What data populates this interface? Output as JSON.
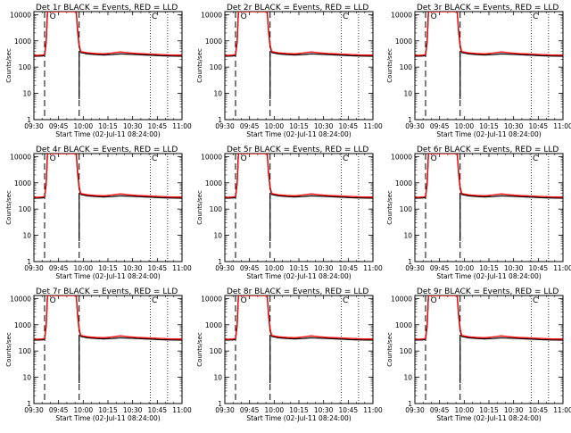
{
  "chart_data": [
    {
      "panel_id": "det1",
      "type": "line",
      "title": "Det 1r BLACK = Events, RED = LLD",
      "xlabel": "Start Time (02-Jul-11 08:24:00)",
      "ylabel": "Counts/sec",
      "markers": [
        "O",
        "C"
      ]
    },
    {
      "panel_id": "det2",
      "type": "line",
      "title": "Det 2r BLACK = Events, RED = LLD",
      "xlabel": "Start Time (02-Jul-11 08:24:00)",
      "ylabel": "Counts/sec",
      "markers": [
        "O",
        "C"
      ]
    },
    {
      "panel_id": "det3",
      "type": "line",
      "title": "Det 3r BLACK = Events, RED = LLD",
      "xlabel": "Start Time (02-Jul-11 08:24:00)",
      "ylabel": "Counts/sec",
      "markers": [
        "O",
        "C"
      ]
    },
    {
      "panel_id": "det4",
      "type": "line",
      "title": "Det 4r BLACK = Events, RED = LLD",
      "xlabel": "Start Time (02-Jul-11 08:24:00)",
      "ylabel": "Counts/sec",
      "markers": [
        "O",
        "C"
      ]
    },
    {
      "panel_id": "det5",
      "type": "line",
      "title": "Det 5r BLACK = Events, RED = LLD",
      "xlabel": "Start Time (02-Jul-11 08:24:00)",
      "ylabel": "Counts/sec",
      "markers": [
        "O",
        "C"
      ]
    },
    {
      "panel_id": "det6",
      "type": "line",
      "title": "Det 6r BLACK = Events, RED = LLD",
      "xlabel": "Start Time (02-Jul-11 08:24:00)",
      "ylabel": "Counts/sec",
      "markers": [
        "O",
        "C"
      ]
    },
    {
      "panel_id": "det7",
      "type": "line",
      "title": "Det 7r BLACK = Events, RED = LLD",
      "xlabel": "Start Time (02-Jul-11 08:24:00)",
      "ylabel": "Counts/sec",
      "markers": [
        "O",
        "C"
      ]
    },
    {
      "panel_id": "det8",
      "type": "line",
      "title": "Det 8r BLACK = Events, RED = LLD",
      "xlabel": "Start Time (02-Jul-11 08:24:00)",
      "ylabel": "Counts/sec",
      "markers": [
        "O",
        "C"
      ]
    },
    {
      "panel_id": "det9",
      "type": "line",
      "title": "Det 9r BLACK = Events, RED = LLD",
      "xlabel": "Start Time (02-Jul-11 08:24:00)",
      "ylabel": "Counts/sec",
      "markers": [
        "O",
        "C"
      ]
    }
  ],
  "axes": {
    "x_domain_minutes": [
      0,
      36
    ],
    "x_ticks": [
      {
        "label": "09:30",
        "minute": 0
      },
      {
        "label": "09:45",
        "minute": 6
      },
      {
        "label": "10:00",
        "minute": 12
      },
      {
        "label": "10:15",
        "minute": 18
      },
      {
        "label": "10:30",
        "minute": 24
      },
      {
        "label": "10:45",
        "minute": 30
      },
      {
        "label": "11:00",
        "minute": 36
      }
    ],
    "y_scale": "log",
    "ylim": [
      1,
      13000
    ],
    "y_ticks": [
      {
        "label": "1",
        "value": 1
      },
      {
        "label": "10",
        "value": 10
      },
      {
        "label": "100",
        "value": 100
      },
      {
        "label": "1000",
        "value": 1000
      },
      {
        "label": "10000",
        "value": 10000
      }
    ]
  },
  "reference_lines": {
    "dashed_minutes": [
      2.6,
      11.0
    ],
    "dotted_minutes": [
      28.3,
      32.5
    ],
    "marker_minutes": {
      "O": 4.6,
      "C": 29.3
    }
  },
  "series": {
    "lld_red": {
      "name": "LLD",
      "color": "#ff0000",
      "points": [
        [
          0,
          280
        ],
        [
          1,
          282
        ],
        [
          2,
          288
        ],
        [
          2.6,
          300
        ],
        [
          3,
          1000
        ],
        [
          3.3,
          13000
        ],
        [
          10.3,
          13000
        ],
        [
          10.6,
          3000
        ],
        [
          11,
          700
        ],
        [
          11.4,
          390
        ],
        [
          13,
          350
        ],
        [
          15,
          330
        ],
        [
          17,
          320
        ],
        [
          19,
          345
        ],
        [
          21,
          380
        ],
        [
          23,
          350
        ],
        [
          25,
          330
        ],
        [
          27,
          320
        ],
        [
          29,
          310
        ],
        [
          31,
          300
        ],
        [
          33,
          290
        ],
        [
          36,
          285
        ]
      ]
    },
    "events_black": {
      "name": "Events",
      "color": "#000000",
      "points": [
        [
          0,
          260
        ],
        [
          1,
          262
        ],
        [
          2,
          265
        ],
        [
          2.6,
          280
        ],
        [
          3,
          900
        ],
        [
          3.3,
          13000
        ],
        [
          10.3,
          13000
        ],
        [
          10.6,
          2500
        ],
        [
          11,
          600
        ],
        [
          11.4,
          360
        ],
        [
          13,
          320
        ],
        [
          15,
          300
        ],
        [
          17,
          290
        ],
        [
          19,
          300
        ],
        [
          21,
          320
        ],
        [
          23,
          310
        ],
        [
          25,
          300
        ],
        [
          27,
          290
        ],
        [
          29,
          280
        ],
        [
          31,
          270
        ],
        [
          33,
          265
        ],
        [
          36,
          260
        ]
      ]
    },
    "dropout_minute": 11.0,
    "dropout_min_value": 6
  }
}
